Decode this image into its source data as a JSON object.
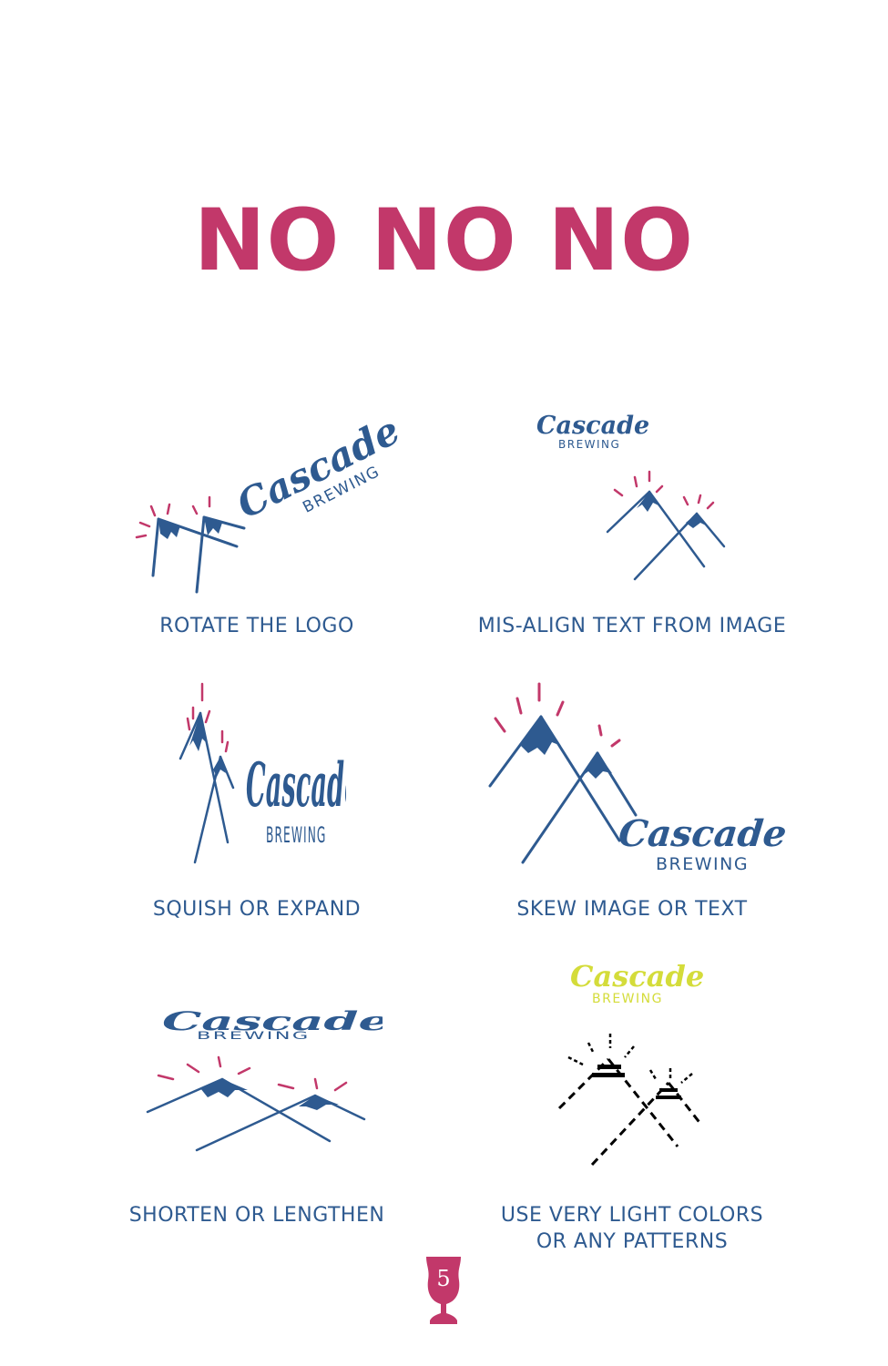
{
  "title": "NO NO NO",
  "items": [
    {
      "caption": "ROTATE THE LOGO",
      "logo_word": "Cascade",
      "logo_sub": "BREWING"
    },
    {
      "caption": "MIS-ALIGN TEXT FROM IMAGE",
      "logo_word": "Cascade",
      "logo_sub": "BREWING"
    },
    {
      "caption": "SQUISH OR EXPAND",
      "logo_word": "Cascade",
      "logo_sub": "BREWING"
    },
    {
      "caption": "SKEW IMAGE OR TEXT",
      "logo_word": "Cascade",
      "logo_sub": "BREWING"
    },
    {
      "caption": "SHORTEN OR LENGTHEN",
      "logo_word": "Cascade",
      "logo_sub": "BREWING"
    },
    {
      "caption_line1": "USE VERY LIGHT COLORS",
      "caption_line2": "OR ANY PATTERNS",
      "logo_word": "Cascade",
      "logo_sub": "BREWING"
    }
  ],
  "page_number": "5",
  "colors": {
    "brand_pink": "#c2386a",
    "brand_blue": "#2e5a90",
    "light_yellow": "#d4dc3a",
    "black": "#000000"
  }
}
